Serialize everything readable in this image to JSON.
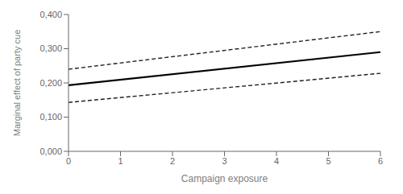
{
  "chart_data": {
    "type": "line",
    "x": [
      0,
      6
    ],
    "series": [
      {
        "color": "#000000",
        "line_style": "solid",
        "values": [
          0.193,
          0.29
        ]
      },
      {
        "color": "#222222",
        "line_style": "dashed",
        "values": [
          0.24,
          0.35
        ]
      },
      {
        "color": "#222222",
        "line_style": "dashed",
        "values": [
          0.143,
          0.228
        ]
      }
    ],
    "xlim": [
      0,
      6
    ],
    "xticks": [
      0,
      1,
      2,
      3,
      4,
      5,
      6
    ],
    "ylim": [
      0.0,
      0.4
    ],
    "yticks": [
      {
        "value": 0.0,
        "label": "0,000"
      },
      {
        "value": 0.1,
        "label": "0,100"
      },
      {
        "value": 0.2,
        "label": "0,200"
      },
      {
        "value": 0.3,
        "label": "0,300"
      },
      {
        "value": 0.4,
        "label": "0,400"
      }
    ],
    "xlabel": "Campaign exposure",
    "ylabel": "Marginal effect of party cue",
    "grid": false
  }
}
